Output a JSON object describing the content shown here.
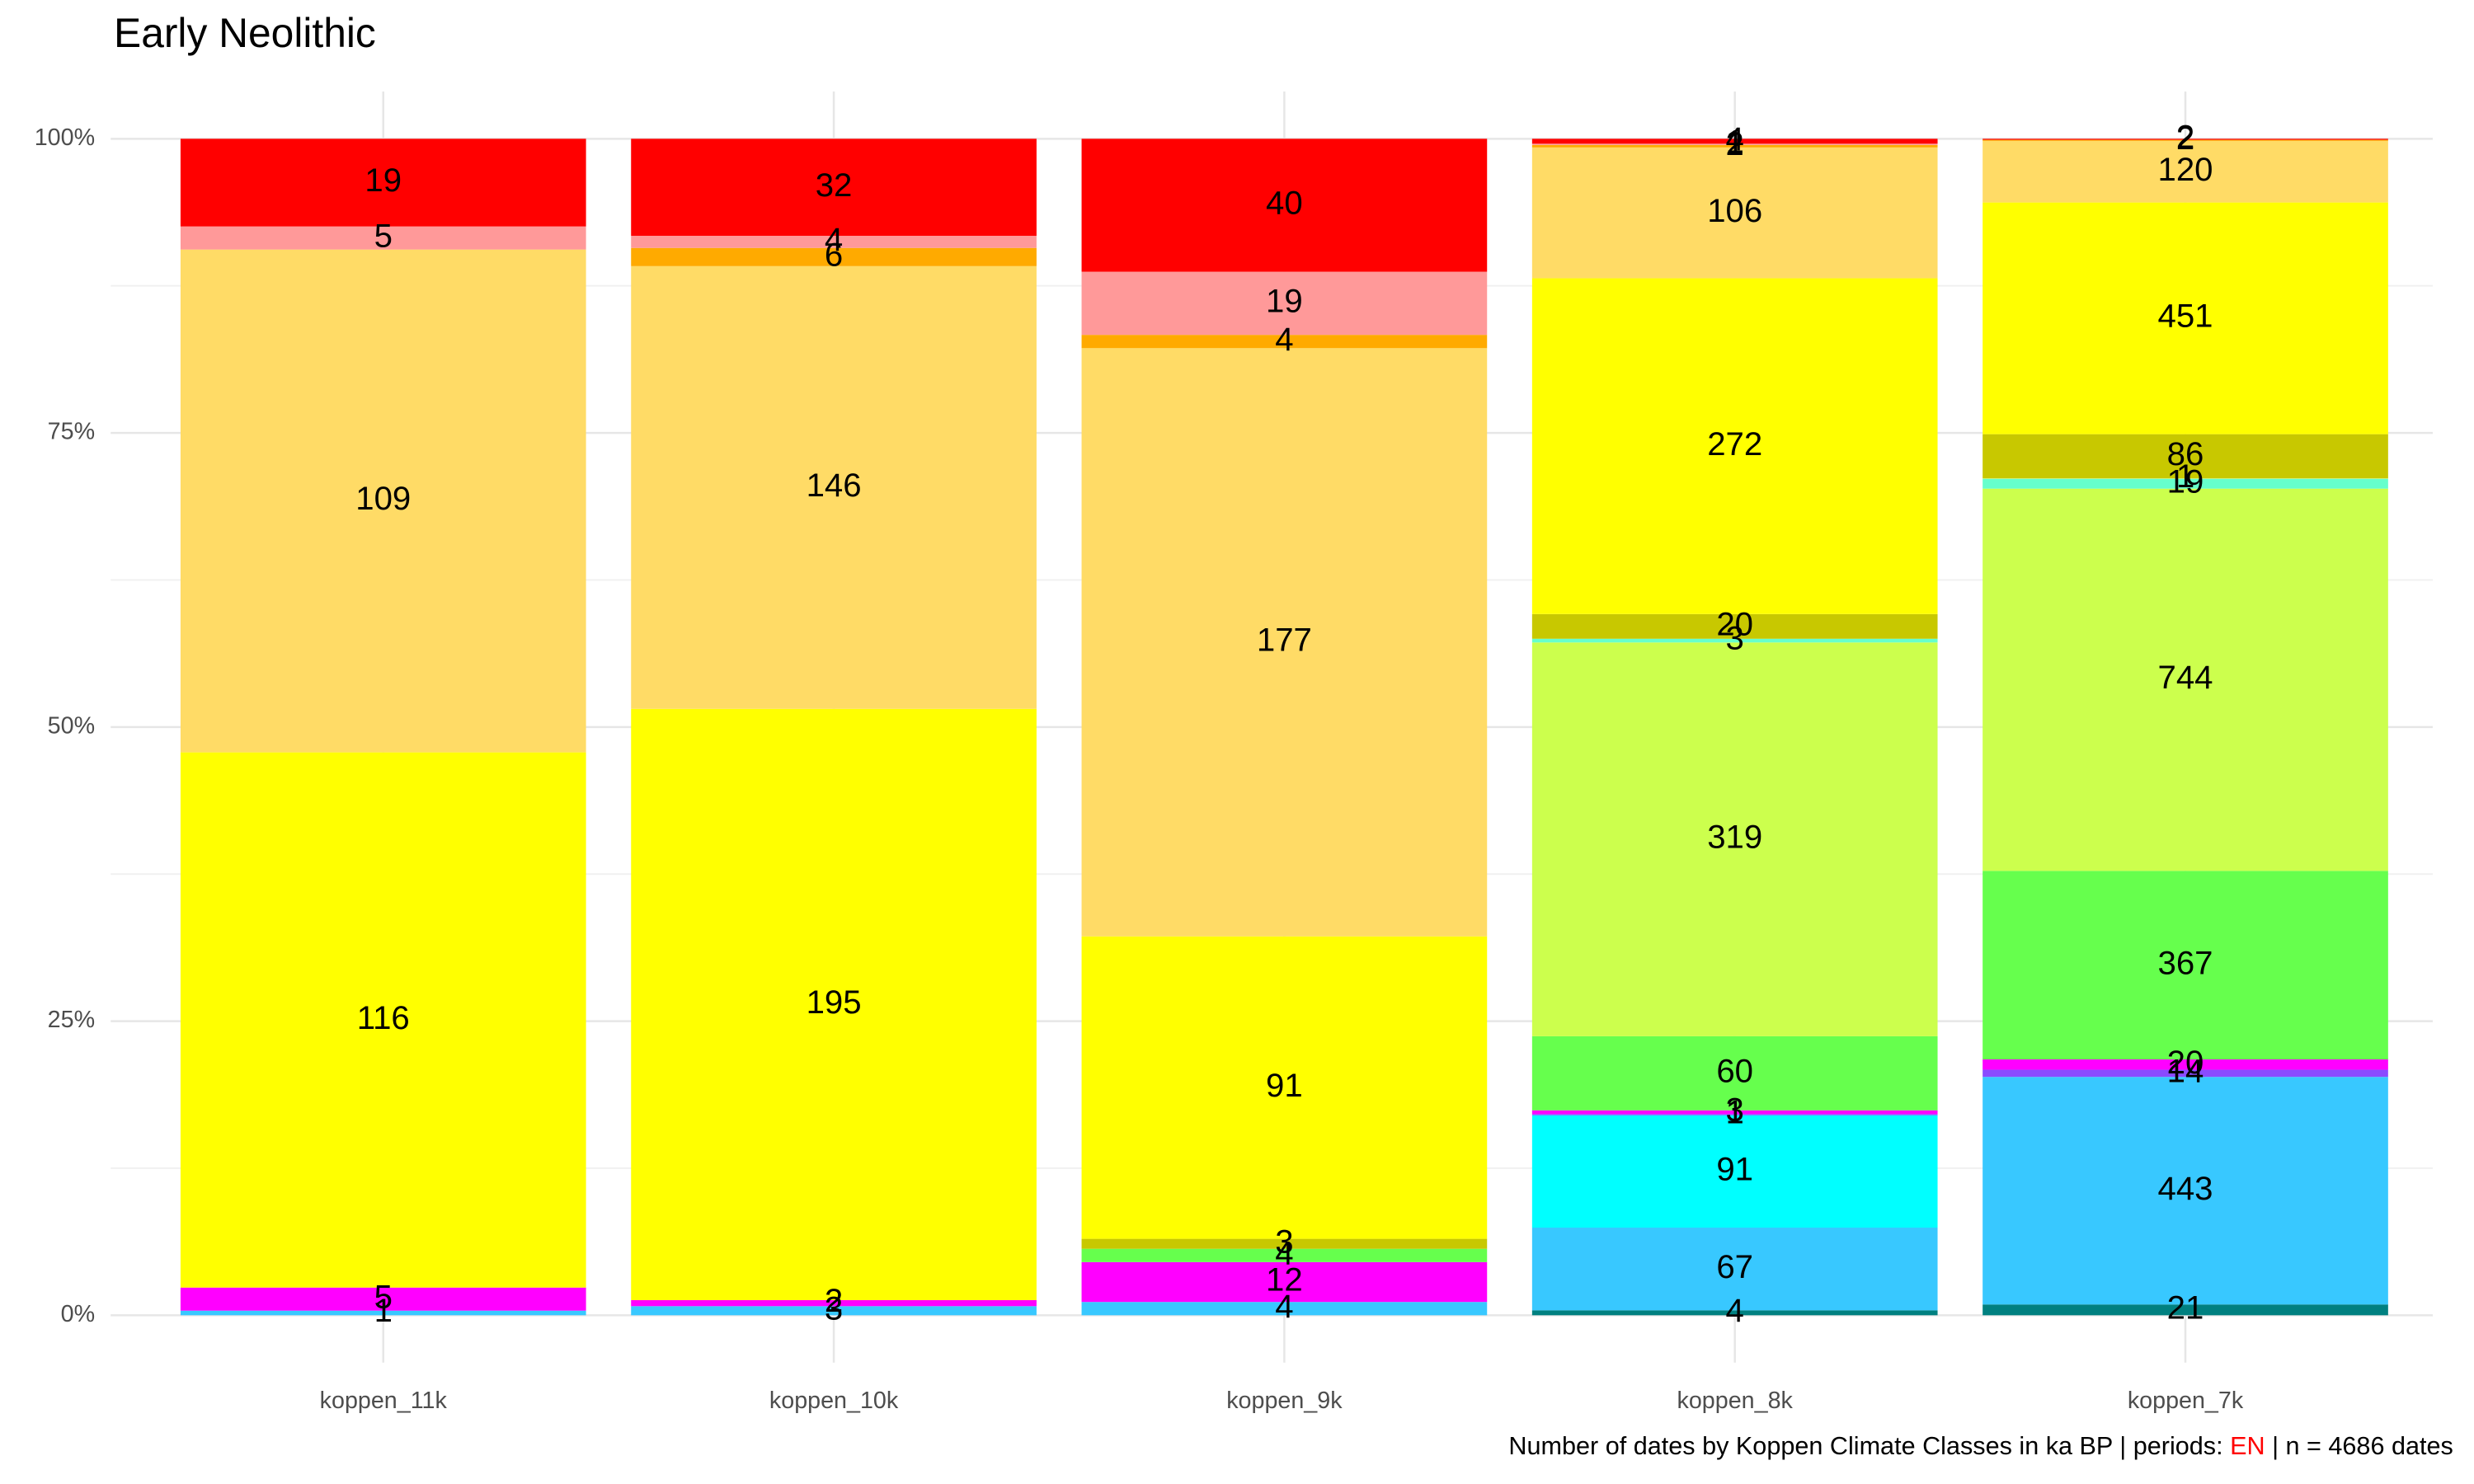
{
  "chart_data": {
    "type": "bar",
    "stacking": "percent",
    "title": "Early Neolithic",
    "caption": {
      "prefix": "Number of dates by Koppen Climate Classes in ka BP | periods: ",
      "period": "EN",
      "period_color": "#ff0000",
      "suffix": " | n = 4686 dates"
    },
    "categories": [
      "koppen_11k",
      "koppen_10k",
      "koppen_9k",
      "koppen_8k",
      "koppen_7k"
    ],
    "series": [
      {
        "color": "#008080",
        "values": [
          null,
          null,
          null,
          4,
          21
        ]
      },
      {
        "color": "#38c8ff",
        "values": [
          1,
          3,
          4,
          67,
          443
        ]
      },
      {
        "color": "#00ffff",
        "values": [
          null,
          null,
          null,
          91,
          null
        ]
      },
      {
        "color": "#8a4bff",
        "values": [
          null,
          null,
          null,
          1,
          14
        ]
      },
      {
        "color": "#ff00ff",
        "values": [
          5,
          2,
          12,
          3,
          20
        ]
      },
      {
        "color": "#66ff4d",
        "values": [
          null,
          null,
          4,
          60,
          367
        ]
      },
      {
        "color": "#ccff4d",
        "values": [
          null,
          null,
          null,
          319,
          744
        ]
      },
      {
        "color": "#66ffcc",
        "values": [
          null,
          null,
          null,
          3,
          19
        ]
      },
      {
        "color": "#b3ff80",
        "values": [
          null,
          null,
          null,
          null,
          1
        ]
      },
      {
        "color": "#c8c800",
        "values": [
          null,
          null,
          3,
          20,
          86
        ]
      },
      {
        "color": "#ffff00",
        "values": [
          116,
          195,
          91,
          272,
          451
        ]
      },
      {
        "color": "#ffdb66",
        "values": [
          109,
          146,
          177,
          106,
          120
        ]
      },
      {
        "color": "#ffaa00",
        "values": [
          null,
          6,
          4,
          2,
          2
        ]
      },
      {
        "color": "#ff9999",
        "values": [
          5,
          4,
          19,
          1,
          null
        ]
      },
      {
        "color": "#ff0000",
        "values": [
          19,
          32,
          40,
          4,
          2
        ]
      }
    ],
    "ylim": [
      0,
      100
    ],
    "yticks": [
      {
        "value": 0,
        "label": "0%"
      },
      {
        "value": 25,
        "label": "25%"
      },
      {
        "value": 50,
        "label": "50%"
      },
      {
        "value": 75,
        "label": "75%"
      },
      {
        "value": 100,
        "label": "100%"
      }
    ],
    "grid": true
  }
}
